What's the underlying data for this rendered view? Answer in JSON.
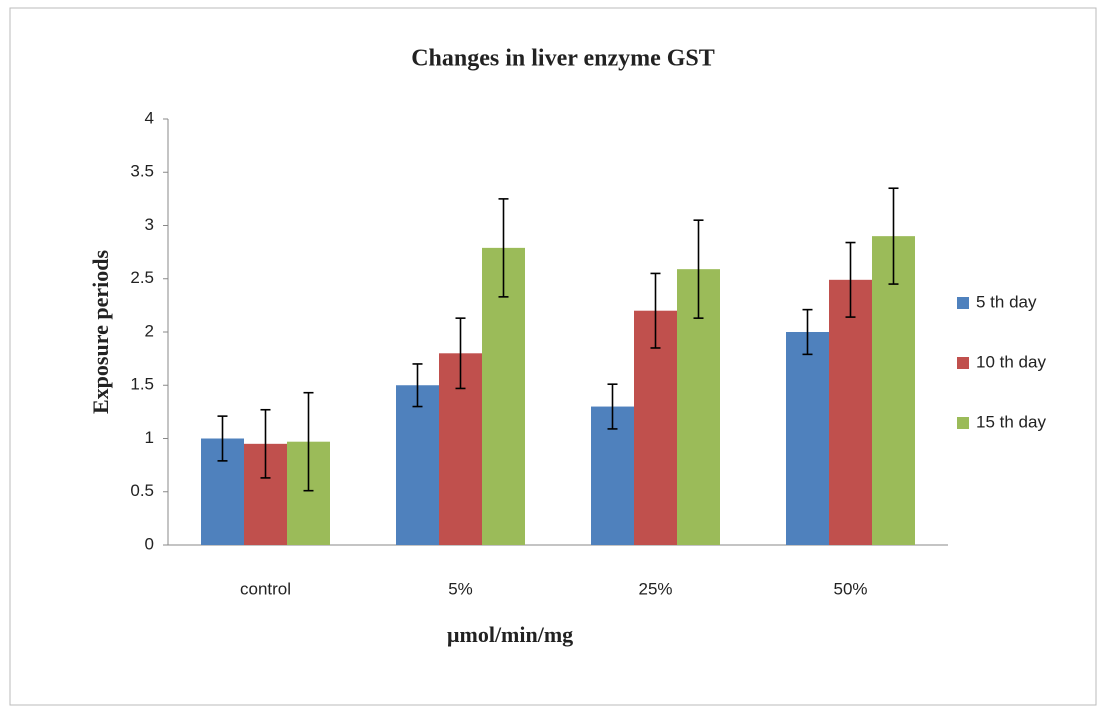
{
  "chart_data": {
    "type": "bar",
    "title": "Changes in liver enzyme GST",
    "x_label": "µmol/min/mg",
    "y_label": "Exposure periods",
    "categories": [
      "control",
      "5%",
      "25%",
      "50%"
    ],
    "series": [
      {
        "name": "5 th day",
        "color": "#4f81bd",
        "values": [
          1.0,
          1.5,
          1.3,
          2.0
        ],
        "errors": [
          0.21,
          0.2,
          0.21,
          0.21
        ]
      },
      {
        "name": "10 th day",
        "color": "#c0504d",
        "values": [
          0.95,
          1.8,
          2.2,
          2.49
        ],
        "errors": [
          0.32,
          0.33,
          0.35,
          0.35
        ]
      },
      {
        "name": "15 th day",
        "color": "#9bbb59",
        "values": [
          0.97,
          2.79,
          2.59,
          2.9
        ],
        "errors": [
          0.46,
          0.46,
          0.46,
          0.45
        ]
      }
    ],
    "ylim": [
      0,
      4
    ],
    "yticks": [
      0,
      0.5,
      1,
      1.5,
      2,
      2.5,
      3,
      3.5,
      4
    ],
    "grid": false,
    "legend": "right"
  }
}
